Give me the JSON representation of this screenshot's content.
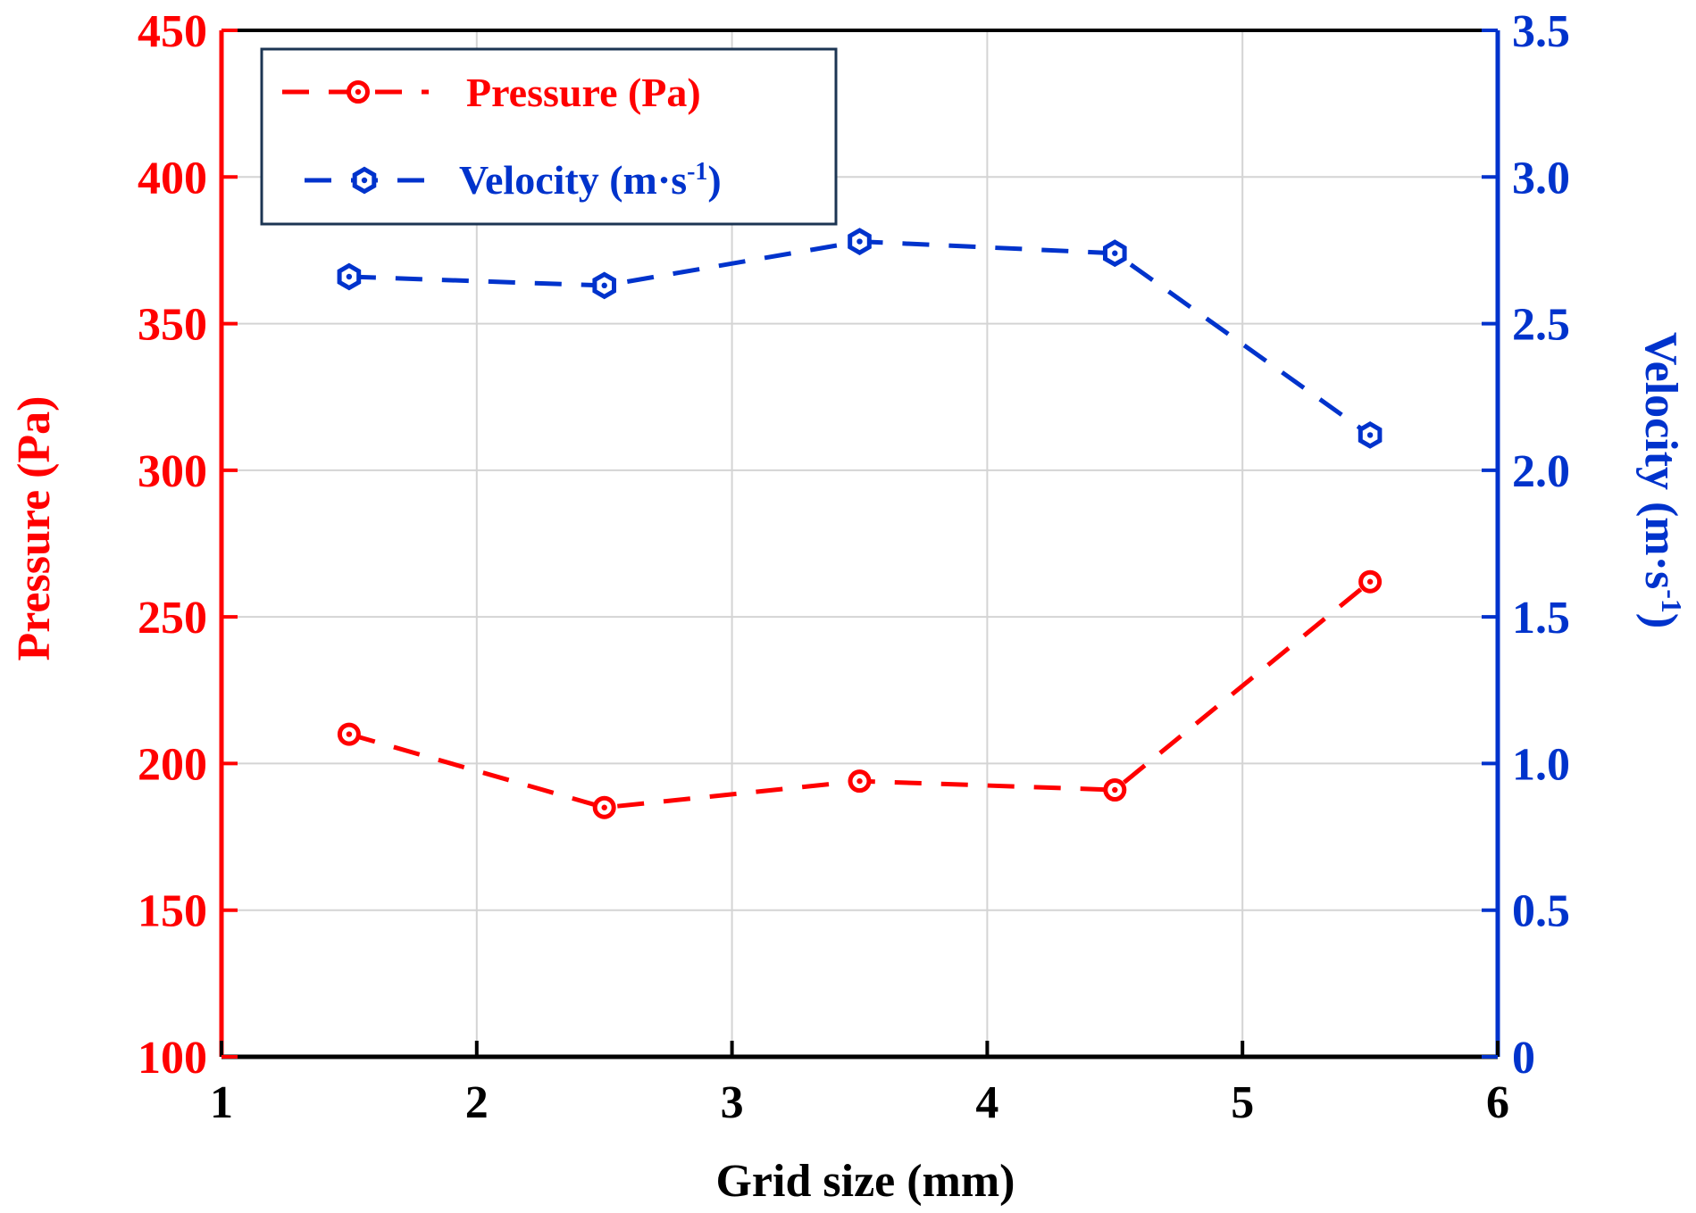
{
  "chart_data": {
    "type": "line",
    "xlabel": "Grid size (mm)",
    "xlim": [
      1,
      6
    ],
    "xticks": [
      "1",
      "2",
      "3",
      "4",
      "5",
      "6"
    ],
    "grid": true,
    "legend_position": "top-left",
    "y_left": {
      "label": "Pressure (Pa)",
      "lim": [
        100,
        450
      ],
      "ticks": [
        "100",
        "150",
        "200",
        "250",
        "300",
        "350",
        "400",
        "450"
      ],
      "color": "#ff0000"
    },
    "y_right": {
      "label_main": "Velocity (m·s",
      "label_sup": "-1",
      "label_close": ")",
      "lim": [
        0,
        3.5
      ],
      "ticks": [
        "0",
        "0.5",
        "1.0",
        "1.5",
        "2.0",
        "2.5",
        "3.0",
        "3.5"
      ],
      "color": "#0033cc"
    },
    "series": [
      {
        "name": "Pressure (Pa)",
        "axis": "left",
        "color": "#ff0000",
        "marker": "circle",
        "x": [
          1.5,
          2.5,
          3.5,
          4.5,
          5.5
        ],
        "y": [
          210,
          185,
          194,
          191,
          262
        ]
      },
      {
        "name_main": "Velocity (m·s",
        "name_sup": "-1",
        "name_close": ")",
        "axis": "right",
        "color": "#0033cc",
        "marker": "hexagon",
        "x": [
          1.5,
          2.5,
          3.5,
          4.5,
          5.5
        ],
        "y": [
          2.66,
          2.63,
          2.78,
          2.74,
          2.12
        ]
      }
    ]
  }
}
